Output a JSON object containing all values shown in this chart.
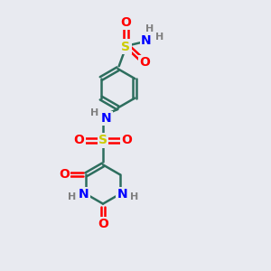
{
  "bg_color": "#e8eaf0",
  "atom_colors": {
    "C": "#2d6e5e",
    "N": "#0000ff",
    "O": "#ff0000",
    "S": "#cccc00",
    "H": "#808080"
  },
  "bond_color": "#2d6e5e",
  "ring_r": 0.72,
  "benz_r": 0.72
}
